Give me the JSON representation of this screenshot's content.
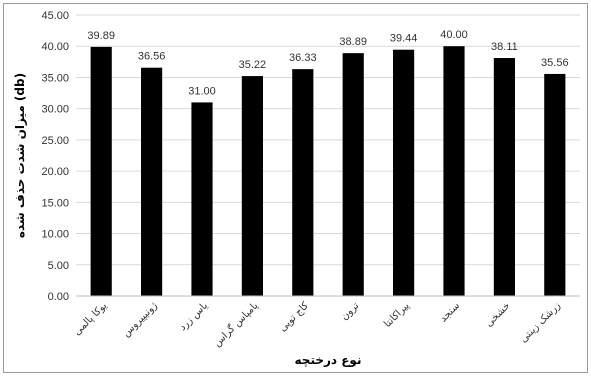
{
  "chart_data": {
    "type": "bar",
    "categories": [
      "یوکا پالمی",
      "ژونیپیروس",
      "یاس زرد",
      "پامپاس گراس",
      "کاج توپی",
      "ترون",
      "پیراکانتا",
      "سنجد",
      "خشخی",
      "زرشک زینتی"
    ],
    "values": [
      39.89,
      36.56,
      31.0,
      35.22,
      36.33,
      38.89,
      39.44,
      40.0,
      38.11,
      35.56
    ],
    "value_labels": [
      "39.89",
      "36.56",
      "31.00",
      "35.22",
      "36.33",
      "38.89",
      "39.44",
      "40.00",
      "38.11",
      "35.56"
    ],
    "xlabel": "نوع درختچه",
    "ylabel": "میزان شدت حذف شده (db)",
    "ylim": [
      0,
      45
    ],
    "yticks": [
      "0.00",
      "5.00",
      "10.00",
      "15.00",
      "20.00",
      "25.00",
      "30.00",
      "35.00",
      "40.00",
      "45.00"
    ],
    "grid": true,
    "legend": "none",
    "bar_color": "#000000",
    "grid_color": "#d9d9d9"
  }
}
